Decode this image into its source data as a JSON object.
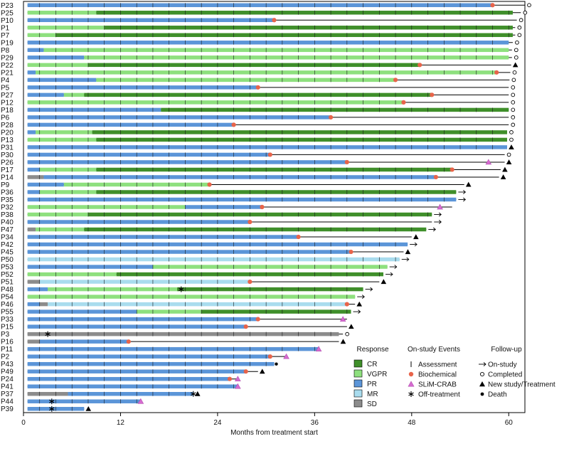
{
  "chart_data": {
    "type": "swimmer",
    "xlabel": "Months from treatment start",
    "xlim": [
      0,
      62
    ],
    "xticks": [
      0,
      12,
      24,
      36,
      48,
      60
    ],
    "colors": {
      "CR": "#3f8f2a",
      "VGPR": "#8ee07e",
      "PR": "#5b95d8",
      "MR": "#a9dcee",
      "SD": "#8c8c8c",
      "line": "#000000",
      "biochemical": "#e8644a",
      "slim": "#d66bd0"
    },
    "legend": {
      "response": {
        "title": "Response",
        "items": [
          {
            "key": "CR",
            "label": "CR"
          },
          {
            "key": "VGPR",
            "label": "VGPR"
          },
          {
            "key": "PR",
            "label": "PR"
          },
          {
            "key": "MR",
            "label": "MR"
          },
          {
            "key": "SD",
            "label": "SD"
          }
        ]
      },
      "events": {
        "title": "On-study Events",
        "items": [
          {
            "key": "assessment",
            "label": "Assessment"
          },
          {
            "key": "biochemical",
            "label": "Biochemical"
          },
          {
            "key": "slim",
            "label": "SLiM-CRAB"
          },
          {
            "key": "offtreatment",
            "label": "Off-treatment"
          }
        ]
      },
      "followup": {
        "title": "Follow-up",
        "items": [
          {
            "key": "arrow",
            "label": "On-study"
          },
          {
            "key": "open",
            "label": "Completed"
          },
          {
            "key": "triangle",
            "label": "New study/Treatment"
          },
          {
            "key": "dot",
            "label": "Death"
          }
        ]
      }
    },
    "patients": [
      {
        "id": "P23",
        "segs": [
          [
            "PR",
            0.5,
            58
          ]
        ],
        "line": 62,
        "ev": [
          [
            58,
            "bio"
          ]
        ],
        "fu": "open"
      },
      {
        "id": "P25",
        "segs": [
          [
            "VGPR",
            0.5,
            9
          ],
          [
            "CR",
            9,
            60.5
          ]
        ],
        "line": 61.5,
        "ev": [],
        "fu": "open"
      },
      {
        "id": "P10",
        "segs": [
          [
            "PR",
            0.5,
            31
          ]
        ],
        "line": 61,
        "ev": [
          [
            31,
            "bio"
          ]
        ],
        "fu": "open"
      },
      {
        "id": "P1",
        "segs": [
          [
            "VGPR",
            0.5,
            10
          ],
          [
            "CR",
            10,
            60.5
          ]
        ],
        "line": 60.8,
        "ev": [],
        "fu": "open"
      },
      {
        "id": "P7",
        "segs": [
          [
            "VGPR",
            0.5,
            4
          ],
          [
            "CR",
            4,
            60.5
          ]
        ],
        "line": 60.8,
        "ev": [],
        "fu": "open"
      },
      {
        "id": "P19",
        "segs": [
          [
            "PR",
            0.5,
            60
          ]
        ],
        "line": 60.5,
        "ev": [],
        "fu": "open"
      },
      {
        "id": "P8",
        "segs": [
          [
            "PR",
            0.5,
            2.5
          ],
          [
            "VGPR",
            2.5,
            60
          ]
        ],
        "line": 60.4,
        "ev": [],
        "fu": "open"
      },
      {
        "id": "P29",
        "segs": [
          [
            "PR",
            0.5,
            7.5
          ],
          [
            "VGPR",
            7.5,
            60
          ]
        ],
        "line": 60.4,
        "ev": [],
        "fu": "open"
      },
      {
        "id": "P22",
        "segs": [
          [
            "VGPR",
            0.5,
            8
          ],
          [
            "CR",
            8,
            49
          ]
        ],
        "line": 60.3,
        "ev": [
          [
            49,
            "bio"
          ]
        ],
        "fu": "triangle"
      },
      {
        "id": "P21",
        "segs": [
          [
            "PR",
            0.5,
            1.5
          ],
          [
            "VGPR",
            1.5,
            58.5
          ]
        ],
        "line": 60.2,
        "ev": [
          [
            58.5,
            "bio"
          ]
        ],
        "fu": "open"
      },
      {
        "id": "P4",
        "segs": [
          [
            "PR",
            0.5,
            9
          ],
          [
            "VGPR",
            9,
            46
          ]
        ],
        "line": 60.1,
        "ev": [
          [
            46,
            "bio"
          ]
        ],
        "fu": "open"
      },
      {
        "id": "P5",
        "segs": [
          [
            "PR",
            0.5,
            29
          ]
        ],
        "line": 60,
        "ev": [
          [
            29,
            "bio"
          ]
        ],
        "fu": "open"
      },
      {
        "id": "P27",
        "segs": [
          [
            "PR",
            0.5,
            5
          ],
          [
            "VGPR",
            5,
            7.5
          ],
          [
            "CR",
            7.5,
            50.5
          ]
        ],
        "line": 60,
        "ev": [
          [
            50.5,
            "bio"
          ]
        ],
        "fu": "open"
      },
      {
        "id": "P12",
        "segs": [
          [
            "VGPR",
            0.5,
            47
          ]
        ],
        "line": 60,
        "ev": [
          [
            47,
            "bio"
          ]
        ],
        "fu": "open"
      },
      {
        "id": "P18",
        "segs": [
          [
            "PR",
            0.5,
            17
          ],
          [
            "CR",
            17,
            60
          ]
        ],
        "line": 60,
        "ev": [],
        "fu": "open"
      },
      {
        "id": "P6",
        "segs": [
          [
            "PR",
            0.5,
            38
          ]
        ],
        "line": 60,
        "ev": [
          [
            38,
            "bio"
          ]
        ],
        "fu": "open"
      },
      {
        "id": "P28",
        "segs": [
          [
            "PR",
            0.5,
            26
          ]
        ],
        "line": 60,
        "ev": [
          [
            26,
            "bio"
          ]
        ],
        "fu": "open"
      },
      {
        "id": "P20",
        "segs": [
          [
            "PR",
            0.5,
            1.5
          ],
          [
            "VGPR",
            1.5,
            8.5
          ],
          [
            "CR",
            8.5,
            59.8
          ]
        ],
        "line": 59.8,
        "ev": [],
        "fu": "open"
      },
      {
        "id": "P13",
        "segs": [
          [
            "VGPR",
            0.5,
            9
          ],
          [
            "CR",
            9,
            59.8
          ]
        ],
        "line": 59.8,
        "ev": [],
        "fu": "open"
      },
      {
        "id": "P31",
        "segs": [
          [
            "PR",
            0.5,
            59.8
          ]
        ],
        "line": 59.8,
        "ev": [],
        "fu": "triangle"
      },
      {
        "id": "P30",
        "segs": [
          [
            "PR",
            0.5,
            30.5
          ]
        ],
        "line": 59.5,
        "ev": [
          [
            30.5,
            "bio"
          ]
        ],
        "fu": "open"
      },
      {
        "id": "P26",
        "segs": [
          [
            "PR",
            0.5,
            40
          ]
        ],
        "line": 59.5,
        "ev": [
          [
            40,
            "bio"
          ],
          [
            57.5,
            "slim"
          ]
        ],
        "fu": "triangle"
      },
      {
        "id": "P17",
        "segs": [
          [
            "PR",
            0.5,
            2
          ],
          [
            "VGPR",
            2,
            9
          ],
          [
            "CR",
            9,
            53
          ]
        ],
        "line": 59,
        "ev": [
          [
            53,
            "bio"
          ]
        ],
        "fu": "triangle"
      },
      {
        "id": "P14",
        "segs": [
          [
            "SD",
            0.5,
            2.5
          ],
          [
            "PR",
            2.5,
            51
          ]
        ],
        "line": 58.8,
        "ev": [
          [
            51,
            "bio"
          ]
        ],
        "fu": "triangle"
      },
      {
        "id": "P9",
        "segs": [
          [
            "PR",
            0.5,
            5
          ],
          [
            "VGPR",
            5,
            23
          ]
        ],
        "line": 54.5,
        "ev": [
          [
            23,
            "bio"
          ]
        ],
        "fu": "triangle"
      },
      {
        "id": "P36",
        "segs": [
          [
            "PR",
            0.5,
            2
          ],
          [
            "VGPR",
            2,
            9
          ],
          [
            "CR",
            9,
            53.5
          ]
        ],
        "line": 53.5,
        "ev": [],
        "fu": "arrow"
      },
      {
        "id": "P35",
        "segs": [
          [
            "PR",
            0.5,
            53.5
          ]
        ],
        "line": 53.5,
        "ev": [],
        "fu": "arrow"
      },
      {
        "id": "P32",
        "segs": [
          [
            "VGPR",
            0.5,
            20
          ],
          [
            "PR",
            20,
            29.5
          ]
        ],
        "line": 53,
        "ev": [
          [
            29.5,
            "bio"
          ],
          [
            51.5,
            "slim"
          ]
        ],
        "fu": "none"
      },
      {
        "id": "P38",
        "segs": [
          [
            "VGPR",
            0.5,
            8
          ],
          [
            "CR",
            8,
            50.5
          ]
        ],
        "line": 50.5,
        "ev": [],
        "fu": "arrow"
      },
      {
        "id": "P40",
        "segs": [
          [
            "PR",
            0.5,
            28
          ]
        ],
        "line": 50.5,
        "ev": [
          [
            28,
            "bio"
          ]
        ],
        "fu": "arrow"
      },
      {
        "id": "P47",
        "segs": [
          [
            "SD",
            0.5,
            1.5
          ],
          [
            "VGPR",
            1.5,
            7.5
          ],
          [
            "CR",
            7.5,
            49.8
          ]
        ],
        "line": 49.8,
        "ev": [],
        "fu": "arrow"
      },
      {
        "id": "P34",
        "segs": [
          [
            "PR",
            0.5,
            34
          ]
        ],
        "line": 48,
        "ev": [
          [
            34,
            "bio"
          ]
        ],
        "fu": "triangle"
      },
      {
        "id": "P42",
        "segs": [
          [
            "PR",
            0.5,
            47.5
          ]
        ],
        "line": 47.5,
        "ev": [],
        "fu": "arrow"
      },
      {
        "id": "P45",
        "segs": [
          [
            "PR",
            0.5,
            40.5
          ]
        ],
        "line": 47,
        "ev": [
          [
            40.5,
            "bio"
          ]
        ],
        "fu": "triangle"
      },
      {
        "id": "P50",
        "segs": [
          [
            "MR",
            0.5,
            46.5
          ]
        ],
        "line": 46.5,
        "ev": [],
        "fu": "arrow"
      },
      {
        "id": "P53",
        "segs": [
          [
            "PR",
            0.5,
            16
          ],
          [
            "VGPR",
            16,
            45
          ]
        ],
        "line": 45,
        "ev": [],
        "fu": "arrow"
      },
      {
        "id": "P52",
        "segs": [
          [
            "VGPR",
            0.5,
            11.5
          ],
          [
            "CR",
            11.5,
            44.5
          ]
        ],
        "line": 44.5,
        "ev": [],
        "fu": "arrow"
      },
      {
        "id": "P51",
        "segs": [
          [
            "SD",
            0.5,
            2
          ],
          [
            "MR",
            2,
            28
          ]
        ],
        "line": 44,
        "ev": [
          [
            28,
            "bio"
          ]
        ],
        "fu": "triangle"
      },
      {
        "id": "P48",
        "segs": [
          [
            "PR",
            0.5,
            3
          ],
          [
            "VGPR",
            3,
            19
          ],
          [
            "CR",
            19,
            42
          ]
        ],
        "line": 42,
        "ev": [
          [
            19.5,
            "off"
          ]
        ],
        "fu": "arrow"
      },
      {
        "id": "P54",
        "segs": [
          [
            "VGPR",
            0.5,
            41
          ]
        ],
        "line": 41,
        "ev": [],
        "fu": "arrow"
      },
      {
        "id": "P46",
        "segs": [
          [
            "PR",
            0.5,
            2
          ],
          [
            "SD",
            2,
            3
          ],
          [
            "MR",
            3,
            40
          ]
        ],
        "line": 41,
        "ev": [
          [
            40,
            "bio"
          ]
        ],
        "fu": "triangle"
      },
      {
        "id": "P55",
        "segs": [
          [
            "PR",
            0.5,
            14
          ],
          [
            "VGPR",
            14,
            22
          ],
          [
            "CR",
            22,
            40.5
          ]
        ],
        "line": 40.5,
        "ev": [],
        "fu": "arrow"
      },
      {
        "id": "P33",
        "segs": [
          [
            "PR",
            0.5,
            29
          ]
        ],
        "line": 40,
        "ev": [
          [
            29,
            "bio"
          ],
          [
            39.5,
            "slim"
          ]
        ],
        "fu": "none"
      },
      {
        "id": "P15",
        "segs": [
          [
            "PR",
            0.5,
            27.5
          ]
        ],
        "line": 40,
        "ev": [
          [
            27.5,
            "bio"
          ]
        ],
        "fu": "triangle"
      },
      {
        "id": "P3",
        "segs": [
          [
            "SD",
            0.5,
            39
          ]
        ],
        "line": 39.5,
        "ev": [
          [
            3,
            "off"
          ]
        ],
        "fu": "open"
      },
      {
        "id": "P16",
        "segs": [
          [
            "SD",
            0.5,
            2
          ],
          [
            "PR",
            2,
            13
          ]
        ],
        "line": 39,
        "ev": [
          [
            13,
            "bio"
          ]
        ],
        "fu": "triangle"
      },
      {
        "id": "P11",
        "segs": [
          [
            "PR",
            0.5,
            36.5
          ]
        ],
        "line": 36.5,
        "ev": [
          [
            36.5,
            "slim"
          ]
        ],
        "fu": "none"
      },
      {
        "id": "P2",
        "segs": [
          [
            "PR",
            0.5,
            30.5
          ]
        ],
        "line": 32.5,
        "ev": [
          [
            30.5,
            "bio"
          ],
          [
            32.5,
            "slim"
          ]
        ],
        "fu": "none"
      },
      {
        "id": "P43",
        "segs": [
          [
            "PR",
            0.5,
            31
          ]
        ],
        "line": 31,
        "ev": [],
        "fu": "dot"
      },
      {
        "id": "P49",
        "segs": [
          [
            "PR",
            0.5,
            27.5
          ]
        ],
        "line": 29,
        "ev": [
          [
            27.5,
            "bio"
          ]
        ],
        "fu": "triangle"
      },
      {
        "id": "P24",
        "segs": [
          [
            "PR",
            0.5,
            25.5
          ]
        ],
        "line": 26.5,
        "ev": [
          [
            25.5,
            "bio"
          ],
          [
            26.5,
            "slim"
          ]
        ],
        "fu": "none"
      },
      {
        "id": "P41",
        "segs": [
          [
            "PR",
            0.5,
            26.5
          ]
        ],
        "line": 26.5,
        "ev": [
          [
            26.5,
            "slim"
          ]
        ],
        "fu": "none"
      },
      {
        "id": "P37",
        "segs": [
          [
            "SD",
            0.5,
            5.5
          ],
          [
            "PR",
            5.5,
            21
          ]
        ],
        "line": 21,
        "ev": [
          [
            21,
            "off"
          ]
        ],
        "fu": "triangle"
      },
      {
        "id": "P44",
        "segs": [
          [
            "PR",
            0.5,
            14.5
          ]
        ],
        "line": 14.5,
        "ev": [
          [
            3.5,
            "off"
          ],
          [
            14.5,
            "slim"
          ]
        ],
        "fu": "none"
      },
      {
        "id": "P39",
        "segs": [
          [
            "PR",
            0.5,
            7.5
          ]
        ],
        "line": 7.5,
        "ev": [
          [
            3.5,
            "off"
          ]
        ],
        "fu": "triangle"
      }
    ]
  }
}
